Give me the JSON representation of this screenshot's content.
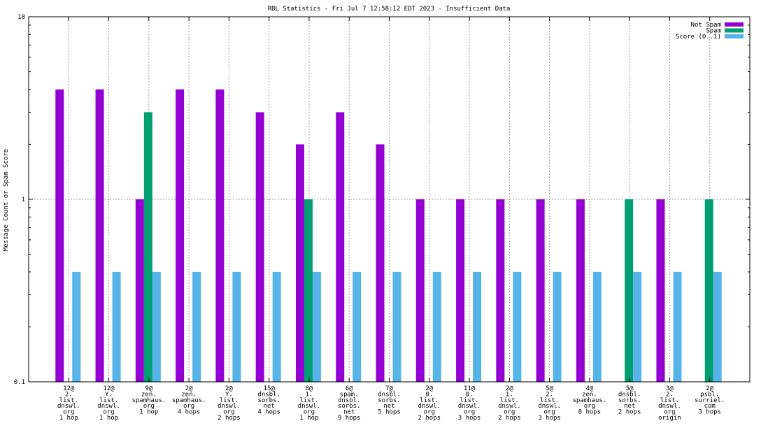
{
  "chart_data": {
    "type": "bar",
    "title": "RBL Statistics - Fri Jul  7 12:58:12 EDT 2023 - Insufficient Data",
    "xlabel": "",
    "ylabel": "Message Count or Spam Score",
    "yscale": "log",
    "ylim": [
      0.1,
      10
    ],
    "yticks": [
      "0.1",
      "1",
      "10"
    ],
    "grid": true,
    "legend_position": "top-right",
    "categories": [
      [
        "12@",
        "2.",
        "list.",
        "dnswl.",
        "org",
        "1 hop"
      ],
      [
        "12@",
        "Y.",
        "list.",
        "dnswl.",
        "org",
        "1 hop"
      ],
      [
        "9@",
        "zen.",
        "spamhaus.",
        "org",
        "1 hop"
      ],
      [
        "2@",
        "zen.",
        "spamhaus.",
        "org",
        "4 hops"
      ],
      [
        "2@",
        "Y.",
        "list.",
        "dnswl.",
        "org",
        "2 hops"
      ],
      [
        "15@",
        "dnsbl.",
        "sorbs.",
        "net",
        "4 hops"
      ],
      [
        "8@",
        "1.",
        "list.",
        "dnswl.",
        "org",
        "1 hop"
      ],
      [
        "6@",
        "spam.",
        "dnsbl.",
        "sorbs.",
        "net",
        "9 hops"
      ],
      [
        "7@",
        "dnsbl.",
        "sorbs.",
        "net",
        "5 hops"
      ],
      [
        "2@",
        "0.",
        "list.",
        "dnswl.",
        "org",
        "2 hops"
      ],
      [
        "11@",
        "0.",
        "list.",
        "dnswl.",
        "org",
        "3 hops"
      ],
      [
        "2@",
        "1.",
        "list.",
        "dnswl.",
        "org",
        "2 hops"
      ],
      [
        "5@",
        "2.",
        "list.",
        "dnswl.",
        "org",
        "3 hops"
      ],
      [
        "4@",
        "zen.",
        "spamhaus.",
        "org",
        "8 hops"
      ],
      [
        "5@",
        "dnsbl.",
        "sorbs.",
        "net",
        "2 hops"
      ],
      [
        "3@",
        "2.",
        "list.",
        "dnswl.",
        "org",
        "origin"
      ],
      [
        "2@",
        "psbl.",
        "surriel.",
        "com",
        "3 hops"
      ]
    ],
    "series": [
      {
        "name": "Not Spam",
        "color": "#9400d3",
        "values": [
          4,
          4,
          1,
          4,
          4,
          3,
          2,
          3,
          2,
          1,
          1,
          1,
          1,
          1,
          0,
          1,
          0
        ]
      },
      {
        "name": "Spam",
        "color": "#009e73",
        "values": [
          0,
          0,
          3,
          0,
          0,
          0,
          1,
          0,
          0,
          0,
          0,
          0,
          0,
          0,
          1,
          0,
          1
        ]
      },
      {
        "name": "Score (0..1)",
        "color": "#56b4e9",
        "values": [
          0.4,
          0.4,
          0.4,
          0.4,
          0.4,
          0.4,
          0.4,
          0.4,
          0.4,
          0.4,
          0.4,
          0.4,
          0.4,
          0.4,
          0.4,
          0.4,
          0.4
        ]
      }
    ]
  }
}
